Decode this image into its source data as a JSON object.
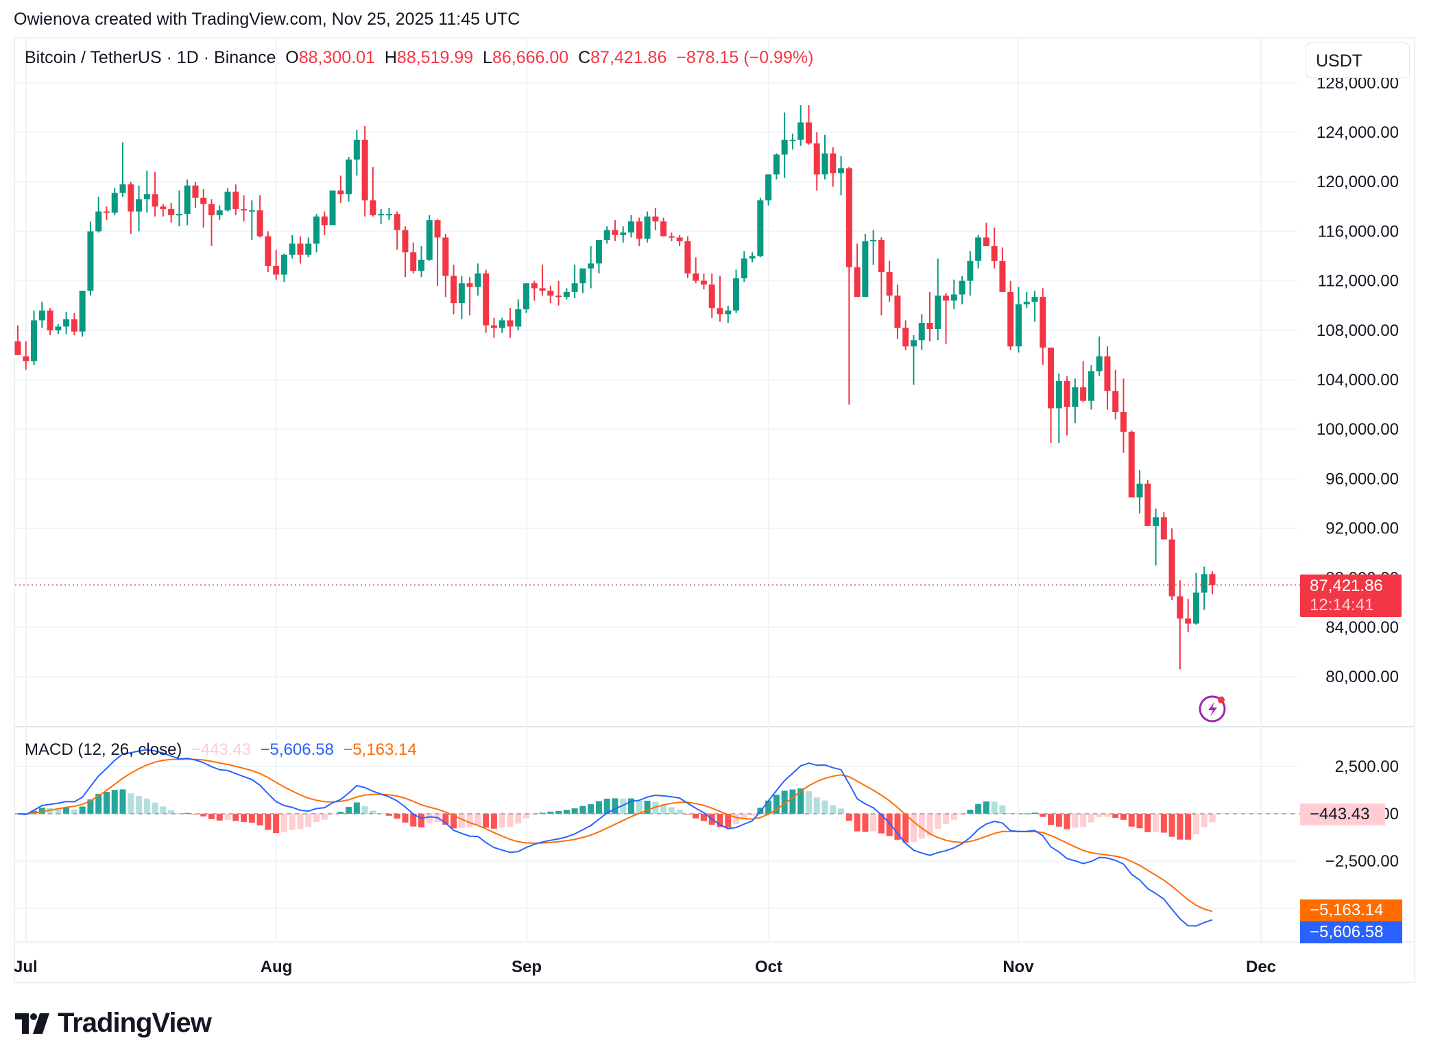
{
  "header": {
    "credit": "Owienova created with TradingView.com, Nov 25, 2025 11:45 UTC"
  },
  "legend": {
    "symbol": "Bitcoin / TetherUS · 1D · Binance",
    "open_label": "O",
    "open": "88,300.01",
    "high_label": "H",
    "high": "88,519.99",
    "low_label": "L",
    "low": "86,666.00",
    "close_label": "C",
    "close": "87,421.86",
    "change": "−878.15 (−0.99%)"
  },
  "currency_button": "USDT",
  "price_axis": {
    "ticks": [
      "128,000.00",
      "124,000.00",
      "120,000.00",
      "116,000.00",
      "112,000.00",
      "108,000.00",
      "104,000.00",
      "100,000.00",
      "96,000.00",
      "92,000.00",
      "88,000.00",
      "84,000.00",
      "80,000.00"
    ],
    "last_price": "87,421.86",
    "countdown": "12:14:41"
  },
  "macd": {
    "title": "MACD (12, 26, close)",
    "histogram": "−443.43",
    "macd": "−5,606.58",
    "signal": "−5,163.14",
    "axis_ticks": [
      "2,500.00",
      "0.00",
      "−2,500.00"
    ]
  },
  "time_axis": [
    "Jul",
    "Aug",
    "Sep",
    "Oct",
    "Nov",
    "Dec"
  ],
  "logo": "TradingView",
  "colors": {
    "up": "#089981",
    "down": "#f23645",
    "macd_line": "#2962ff",
    "signal_line": "#ff6d00",
    "hist_up_strong": "#26a69a",
    "hist_up_weak": "#b2dfdb",
    "hist_down_strong": "#ff5252",
    "hist_down_weak": "#ffcdd2",
    "last_price_tag": "#f23645"
  },
  "chart_data": [
    {
      "type": "candlestick",
      "title": "Bitcoin / TetherUS · 1D · Binance",
      "xlabel": "",
      "ylabel": "USDT",
      "x_range": [
        "2025-06-30",
        "2025-11-25"
      ],
      "ylim": [
        76000,
        128500
      ],
      "x_ticks": [
        "Jul",
        "Aug",
        "Sep",
        "Oct",
        "Nov",
        "Dec"
      ],
      "grid": true,
      "start_date": "2025-06-30",
      "ohlc": [
        [
          107100,
          108400,
          106800,
          106000
        ],
        [
          105900,
          107100,
          104800,
          105500
        ],
        [
          105500,
          109600,
          105200,
          108800
        ],
        [
          108800,
          110300,
          108200,
          109600
        ],
        [
          109600,
          109800,
          107600,
          108000
        ],
        [
          108000,
          108500,
          107700,
          108300
        ],
        [
          108300,
          109500,
          107700,
          108900
        ],
        [
          108900,
          109400,
          107600,
          107900
        ],
        [
          107900,
          111200,
          107500,
          111200
        ],
        [
          111200,
          116800,
          110800,
          116000
        ],
        [
          116000,
          118800,
          115900,
          117600
        ],
        [
          117600,
          118000,
          116900,
          117500
        ],
        [
          117500,
          119500,
          117300,
          119100
        ],
        [
          119100,
          123200,
          118800,
          119800
        ],
        [
          119800,
          120000,
          115800,
          117600
        ],
        [
          117600,
          119700,
          116000,
          118600
        ],
        [
          118600,
          120900,
          117500,
          119000
        ],
        [
          119000,
          120800,
          117200,
          118000
        ],
        [
          118000,
          118200,
          117200,
          117800
        ],
        [
          117800,
          118300,
          116700,
          117300
        ],
        [
          117300,
          119300,
          116400,
          117400
        ],
        [
          117400,
          120200,
          116500,
          119700
        ],
        [
          119700,
          120000,
          117900,
          118700
        ],
        [
          118700,
          119400,
          116300,
          118200
        ],
        [
          118200,
          118600,
          114800,
          117300
        ],
        [
          117300,
          118100,
          116900,
          117700
        ],
        [
          117700,
          119500,
          117600,
          119200
        ],
        [
          119200,
          119800,
          117300,
          117800
        ],
        [
          117800,
          118900,
          116800,
          117700
        ],
        [
          117700,
          118500,
          115300,
          117700
        ],
        [
          117700,
          118900,
          115500,
          115600
        ],
        [
          115600,
          116000,
          112700,
          113200
        ],
        [
          113200,
          114500,
          112100,
          112500
        ],
        [
          112500,
          114200,
          111900,
          114100
        ],
        [
          114100,
          115700,
          113800,
          115000
        ],
        [
          115000,
          115600,
          113400,
          114100
        ],
        [
          114100,
          115500,
          113900,
          115000
        ],
        [
          115000,
          117400,
          114300,
          117200
        ],
        [
          117200,
          117600,
          115700,
          116500
        ],
        [
          116500,
          119200,
          116500,
          119300
        ],
        [
          119300,
          120500,
          118300,
          119000
        ],
        [
          119000,
          122000,
          118400,
          121800
        ],
        [
          121800,
          124200,
          120500,
          123400
        ],
        [
          123400,
          124500,
          117200,
          118500
        ],
        [
          118500,
          121200,
          117200,
          117300
        ],
        [
          117300,
          117800,
          116600,
          117400
        ],
        [
          117400,
          117900,
          116900,
          117400
        ],
        [
          117400,
          117600,
          114500,
          116100
        ],
        [
          116100,
          116400,
          112300,
          114300
        ],
        [
          114300,
          115100,
          112600,
          112800
        ],
        [
          112800,
          114800,
          112300,
          113700
        ],
        [
          113700,
          117300,
          113600,
          116900
        ],
        [
          116900,
          117000,
          111600,
          115500
        ],
        [
          115500,
          115800,
          110700,
          112400
        ],
        [
          112400,
          113300,
          109300,
          110200
        ],
        [
          110200,
          112400,
          108900,
          111800
        ],
        [
          111800,
          112300,
          109200,
          111500
        ],
        [
          111500,
          113400,
          110800,
          112600
        ],
        [
          112600,
          112900,
          107800,
          108400
        ],
        [
          108400,
          109000,
          107400,
          108200
        ],
        [
          108200,
          109000,
          107800,
          108800
        ],
        [
          108800,
          109800,
          107400,
          108300
        ],
        [
          108300,
          110500,
          108000,
          109700
        ],
        [
          109700,
          111800,
          109400,
          111800
        ],
        [
          111800,
          112000,
          110400,
          111400
        ],
        [
          111400,
          113300,
          110800,
          111200
        ],
        [
          111200,
          111600,
          110200,
          110800
        ],
        [
          110800,
          112000,
          110000,
          110700
        ],
        [
          110700,
          111400,
          110500,
          111100
        ],
        [
          111100,
          113300,
          110600,
          111800
        ],
        [
          111800,
          112800,
          111000,
          113000
        ],
        [
          113000,
          114800,
          111400,
          113400
        ],
        [
          113400,
          115200,
          112600,
          115300
        ],
        [
          115300,
          116400,
          115000,
          116100
        ],
        [
          116100,
          116900,
          115200,
          115700
        ],
        [
          115700,
          116400,
          115100,
          115900
        ],
        [
          115900,
          117300,
          115500,
          116800
        ],
        [
          116800,
          117100,
          114800,
          115400
        ],
        [
          115400,
          117600,
          115100,
          117200
        ],
        [
          117200,
          117900,
          116100,
          116800
        ],
        [
          116800,
          117100,
          115600,
          115600
        ],
        [
          115600,
          115900,
          115200,
          115500
        ],
        [
          115500,
          115700,
          114800,
          115200
        ],
        [
          115200,
          115600,
          112200,
          112600
        ],
        [
          112600,
          113900,
          111800,
          112000
        ],
        [
          112000,
          112600,
          111300,
          111700
        ],
        [
          111700,
          112600,
          109000,
          109800
        ],
        [
          109800,
          112400,
          108700,
          109300
        ],
        [
          109300,
          110000,
          108600,
          109600
        ],
        [
          109600,
          112900,
          109400,
          112200
        ],
        [
          112200,
          114400,
          111900,
          113800
        ],
        [
          113800,
          114300,
          113500,
          114000
        ],
        [
          114000,
          118700,
          113900,
          118500
        ],
        [
          118500,
          120500,
          118100,
          120600
        ],
        [
          120600,
          122300,
          120200,
          122200
        ],
        [
          122200,
          125600,
          120300,
          123400
        ],
        [
          123400,
          123900,
          122600,
          123400
        ],
        [
          123400,
          126200,
          122900,
          124800
        ],
        [
          124800,
          126200,
          123000,
          123100
        ],
        [
          123100,
          124000,
          119300,
          120600
        ],
        [
          120600,
          123800,
          120200,
          122300
        ],
        [
          122300,
          122800,
          119600,
          120700
        ],
        [
          120700,
          122100,
          118900,
          121100
        ],
        [
          121100,
          121200,
          102000,
          113100
        ],
        [
          113100,
          115000,
          110800,
          110700
        ],
        [
          110700,
          115800,
          110800,
          115200
        ],
        [
          115200,
          116100,
          113300,
          115300
        ],
        [
          115300,
          115500,
          109200,
          112700
        ],
        [
          112700,
          113600,
          110300,
          110800
        ],
        [
          110800,
          111700,
          107300,
          108200
        ],
        [
          108200,
          108800,
          106400,
          106700
        ],
        [
          106700,
          107600,
          103600,
          107200
        ],
        [
          107200,
          109300,
          106400,
          108600
        ],
        [
          108600,
          111100,
          107100,
          108100
        ],
        [
          108100,
          113800,
          107200,
          110800
        ],
        [
          110800,
          111000,
          106900,
          110400
        ],
        [
          110400,
          112100,
          109700,
          110900
        ],
        [
          110900,
          112400,
          110100,
          112000
        ],
        [
          112000,
          114400,
          110800,
          113600
        ],
        [
          113600,
          115700,
          113000,
          115500
        ],
        [
          115500,
          116700,
          114900,
          114800
        ],
        [
          114800,
          116300,
          113000,
          113600
        ],
        [
          113600,
          114700,
          111400,
          111100
        ],
        [
          111100,
          112000,
          106400,
          106700
        ],
        [
          106700,
          111500,
          106200,
          110100
        ],
        [
          110100,
          111100,
          109800,
          110300
        ],
        [
          110300,
          111200,
          108700,
          110700
        ],
        [
          110700,
          111400,
          105200,
          106600
        ],
        [
          106600,
          106300,
          98900,
          101700
        ],
        [
          101700,
          104500,
          98900,
          103900
        ],
        [
          103900,
          104300,
          99500,
          101800
        ],
        [
          101800,
          104100,
          100500,
          103400
        ],
        [
          103400,
          105500,
          102200,
          102300
        ],
        [
          102300,
          105200,
          101600,
          104700
        ],
        [
          104700,
          107500,
          104300,
          105900
        ],
        [
          105900,
          106700,
          101600,
          103100
        ],
        [
          103100,
          104800,
          100800,
          101400
        ],
        [
          101400,
          104100,
          98100,
          99800
        ],
        [
          99800,
          99900,
          94700,
          94500
        ],
        [
          94500,
          96700,
          93200,
          95600
        ],
        [
          95600,
          95900,
          92500,
          92200
        ],
        [
          92200,
          93600,
          89000,
          92900
        ],
        [
          92900,
          93300,
          91200,
          91100
        ],
        [
          91100,
          92000,
          86200,
          86500
        ],
        [
          86500,
          87800,
          80600,
          84700
        ],
        [
          84700,
          86300,
          83600,
          84300
        ],
        [
          84300,
          88400,
          84200,
          86800
        ],
        [
          86800,
          88900,
          85400,
          88300
        ],
        [
          88300,
          88520,
          86666,
          87421.86
        ]
      ],
      "macd": {
        "fast": 12,
        "slow": 26,
        "signal": 9,
        "last_histogram": -443.43,
        "last_macd": -5606.58,
        "last_signal": -5163.14
      },
      "last_price": 87421.86
    }
  ]
}
